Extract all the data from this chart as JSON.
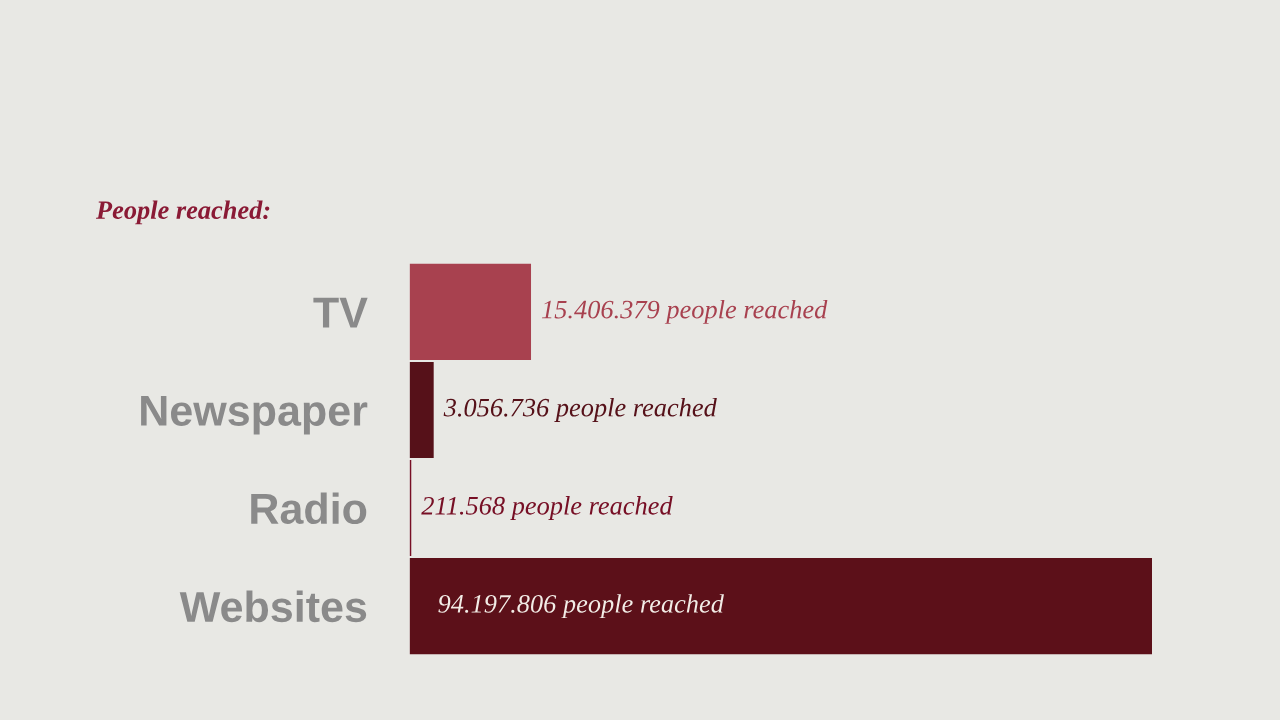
{
  "chart_data": {
    "type": "bar",
    "orientation": "horizontal",
    "title": "People reached:",
    "categories": [
      "TV",
      "Newspaper",
      "Radio",
      "Websites"
    ],
    "values": [
      15406379,
      3056736,
      211568,
      94197806
    ],
    "colors": [
      "#a8414f",
      "#561119",
      "#770f25",
      "#5c1019"
    ],
    "value_labels": [
      "15.406.379 people reached",
      "3.056.736 people reached",
      "211.568 people reached",
      "94.197.806 people reached"
    ]
  }
}
